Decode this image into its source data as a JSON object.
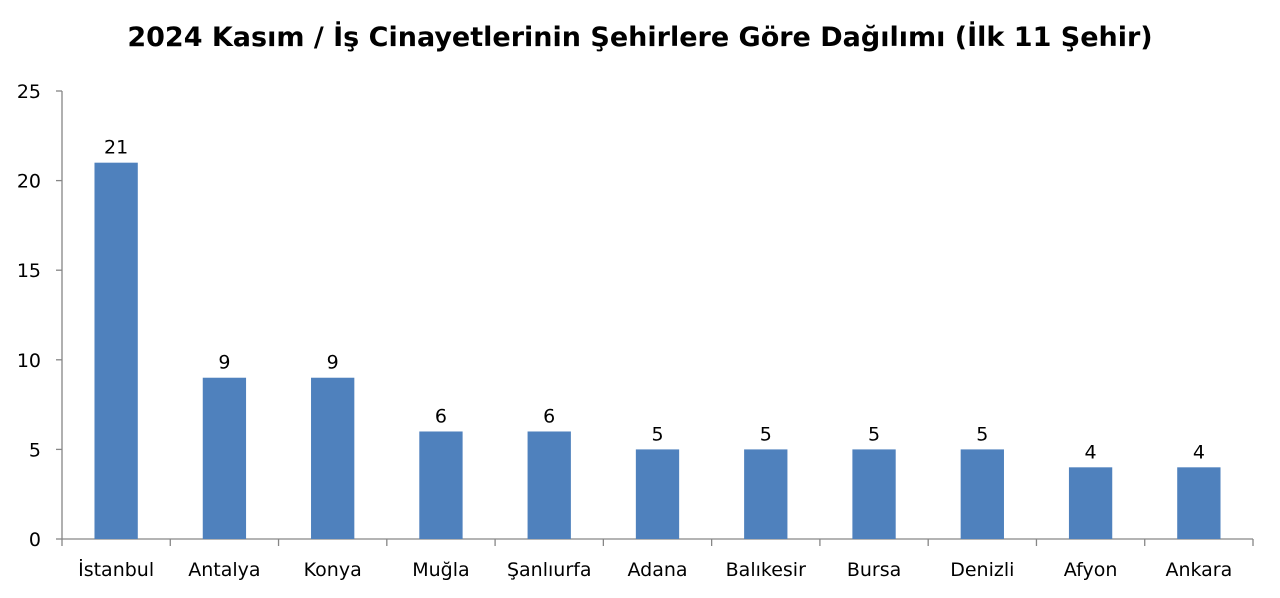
{
  "chart_data": {
    "type": "bar",
    "title": "2024 Kasım / İş Cinayetlerinin Şehirlere Göre Dağılımı (İlk 11 Şehir)",
    "xlabel": "",
    "ylabel": "",
    "categories": [
      "İstanbul",
      "Antalya",
      "Konya",
      "Muğla",
      "Şanlıurfa",
      "Adana",
      "Balıkesir",
      "Bursa",
      "Denizli",
      "Afyon",
      "Ankara"
    ],
    "values": [
      21,
      9,
      9,
      6,
      6,
      5,
      5,
      5,
      5,
      4,
      4
    ],
    "data_labels": [
      "21",
      "9",
      "9",
      "6",
      "6",
      "5",
      "5",
      "5",
      "5",
      "4",
      "4"
    ],
    "ylim": [
      0,
      25
    ],
    "yticks": [
      0,
      5,
      10,
      15,
      20,
      25
    ],
    "grid": false,
    "legend": "none",
    "bar_color": "#4f81bd",
    "axis_color": "#868686"
  }
}
